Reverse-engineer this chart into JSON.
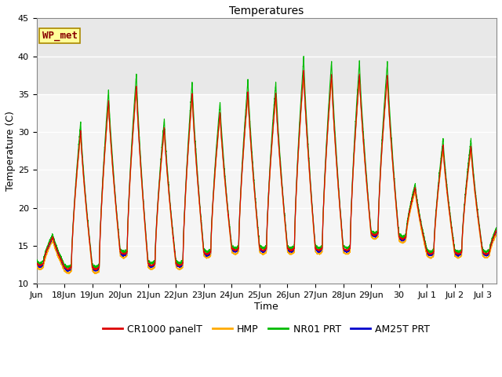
{
  "title": "Temperatures",
  "xlabel": "Time",
  "ylabel": "Temperature (C)",
  "ylim": [
    10,
    45
  ],
  "yticks": [
    10,
    15,
    20,
    25,
    30,
    35,
    40,
    45
  ],
  "x_tick_labels": [
    "Jun",
    "18Jun",
    "19Jun",
    "20Jun",
    "21Jun",
    "22Jun",
    "23Jun",
    "24Jun",
    "25Jun",
    "26Jun",
    "27Jun",
    "28Jun",
    "29Jun",
    "30",
    "Jul 1",
    "Jul 2",
    "Jul 3"
  ],
  "legend_labels": [
    "CR1000 panelT",
    "HMP",
    "NR01 PRT",
    "AM25T PRT"
  ],
  "legend_colors": [
    "#dd0000",
    "#ffaa00",
    "#00bb00",
    "#0000cc"
  ],
  "background_color": "#ffffff",
  "plot_bg_color": "#f5f5f5",
  "annotation_text": "WP_met",
  "annotation_color": "#880000",
  "annotation_bg": "#ffff99",
  "annotation_border": "#aa8800",
  "title_fontsize": 10,
  "axis_label_fontsize": 9,
  "tick_fontsize": 8,
  "legend_fontsize": 9
}
